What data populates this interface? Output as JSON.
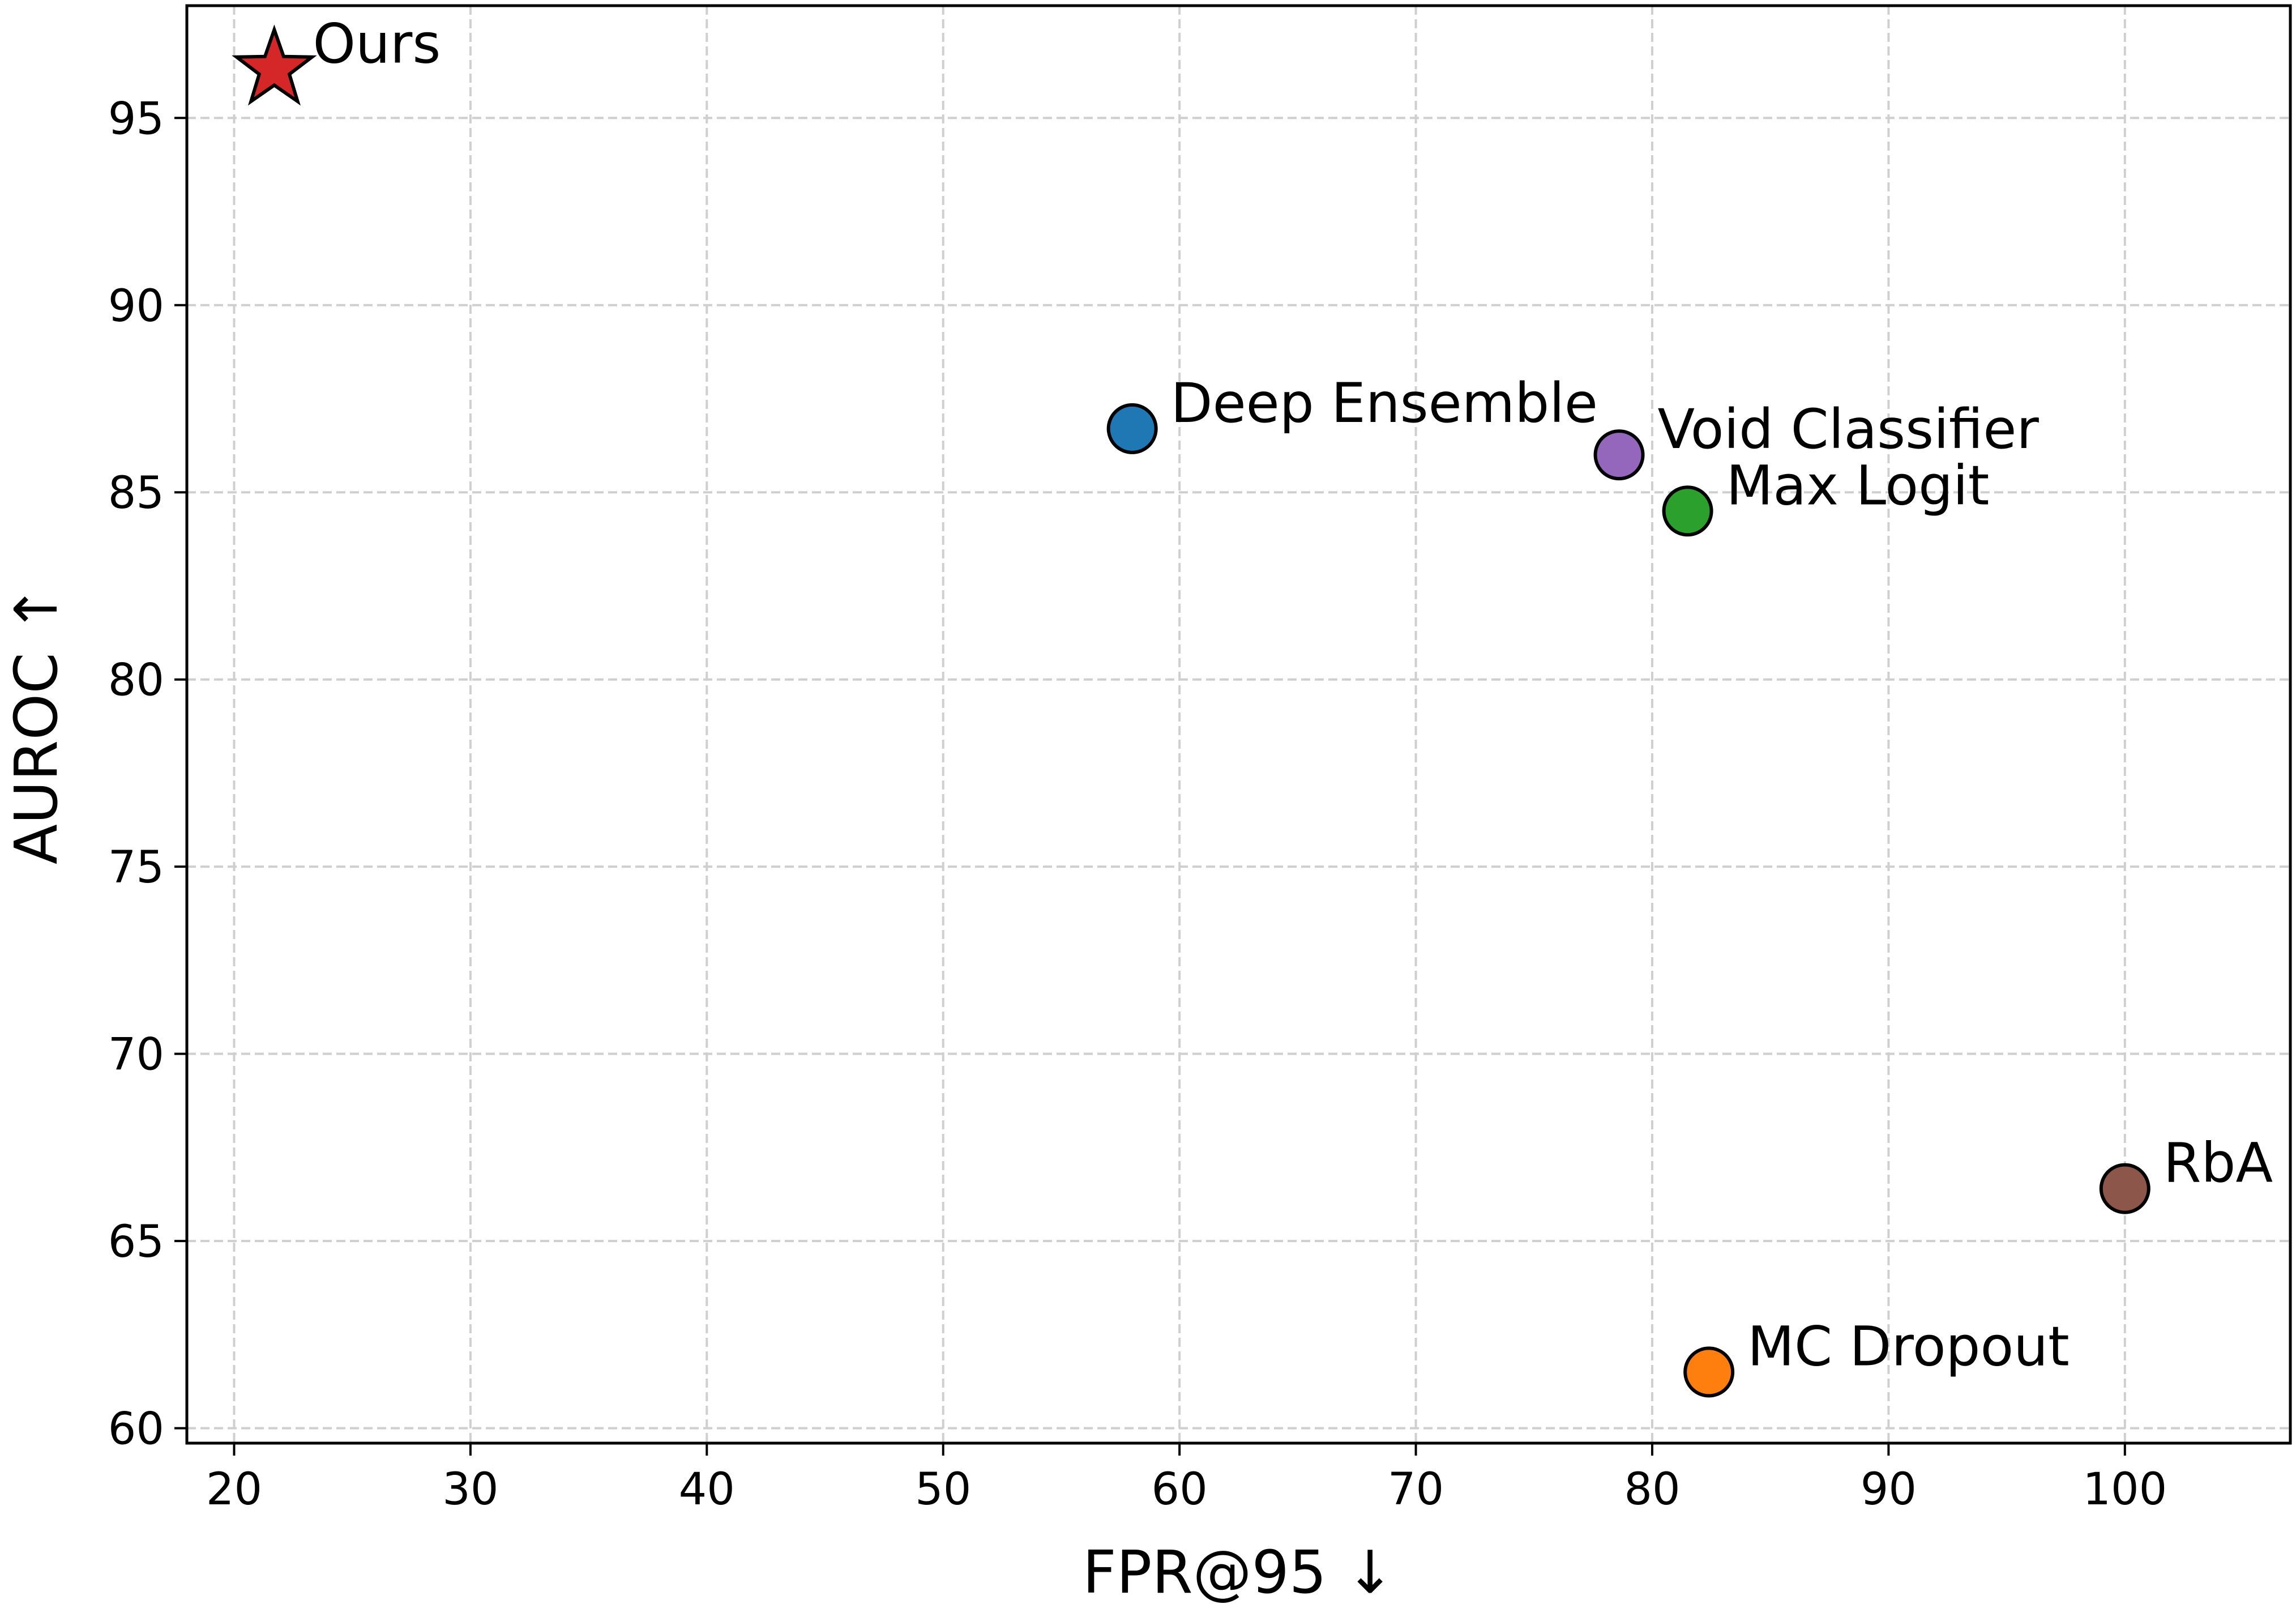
{
  "chart_data": {
    "type": "scatter",
    "title": "",
    "xlabel": "FPR@95 ↓",
    "ylabel": "AUROC ↑",
    "xlim": [
      18,
      107
    ],
    "ylim": [
      59.6,
      98
    ],
    "xticks": [
      20,
      30,
      40,
      50,
      60,
      70,
      80,
      90,
      100
    ],
    "yticks": [
      60,
      65,
      70,
      75,
      80,
      85,
      90,
      95
    ],
    "grid": true,
    "points": [
      {
        "label": "Ours",
        "x": 21.7,
        "y": 96.3,
        "marker": "star",
        "color": "#d62728"
      },
      {
        "label": "Deep Ensemble",
        "x": 58.0,
        "y": 86.7,
        "marker": "circle",
        "color": "#1f77b4"
      },
      {
        "label": "Void Classifier",
        "x": 78.6,
        "y": 86.0,
        "marker": "circle",
        "color": "#9467bd"
      },
      {
        "label": "Max Logit",
        "x": 81.5,
        "y": 84.5,
        "marker": "circle",
        "color": "#2ca02c"
      },
      {
        "label": "RbA",
        "x": 100.0,
        "y": 66.4,
        "marker": "circle",
        "color": "#8c564b"
      },
      {
        "label": "MC Dropout",
        "x": 82.4,
        "y": 61.5,
        "marker": "circle",
        "color": "#ff7f0e"
      }
    ]
  }
}
